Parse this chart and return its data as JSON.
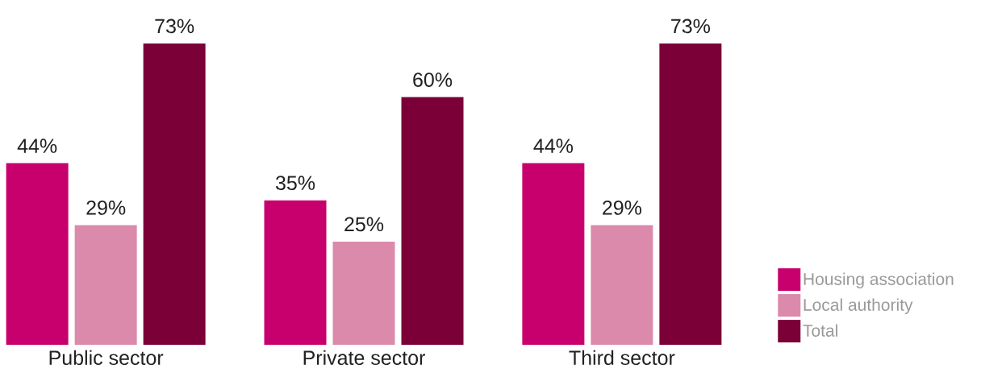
{
  "chart_data": {
    "type": "bar",
    "categories": [
      "Public sector",
      "Private sector",
      "Third sector"
    ],
    "series": [
      {
        "name": "Housing association",
        "color": "#c8006e",
        "values": [
          44,
          35,
          44
        ],
        "value_labels": [
          "44%",
          "35%",
          "44%"
        ]
      },
      {
        "name": "Local authority",
        "color": "#db8aab",
        "values": [
          29,
          25,
          29
        ],
        "value_labels": [
          "29%",
          "25%",
          "29%"
        ]
      },
      {
        "name": "Total",
        "color": "#7a0037",
        "values": [
          73,
          60,
          73
        ],
        "value_labels": [
          "73%",
          "60%",
          "73%"
        ]
      }
    ],
    "legend": "bottom right"
  }
}
